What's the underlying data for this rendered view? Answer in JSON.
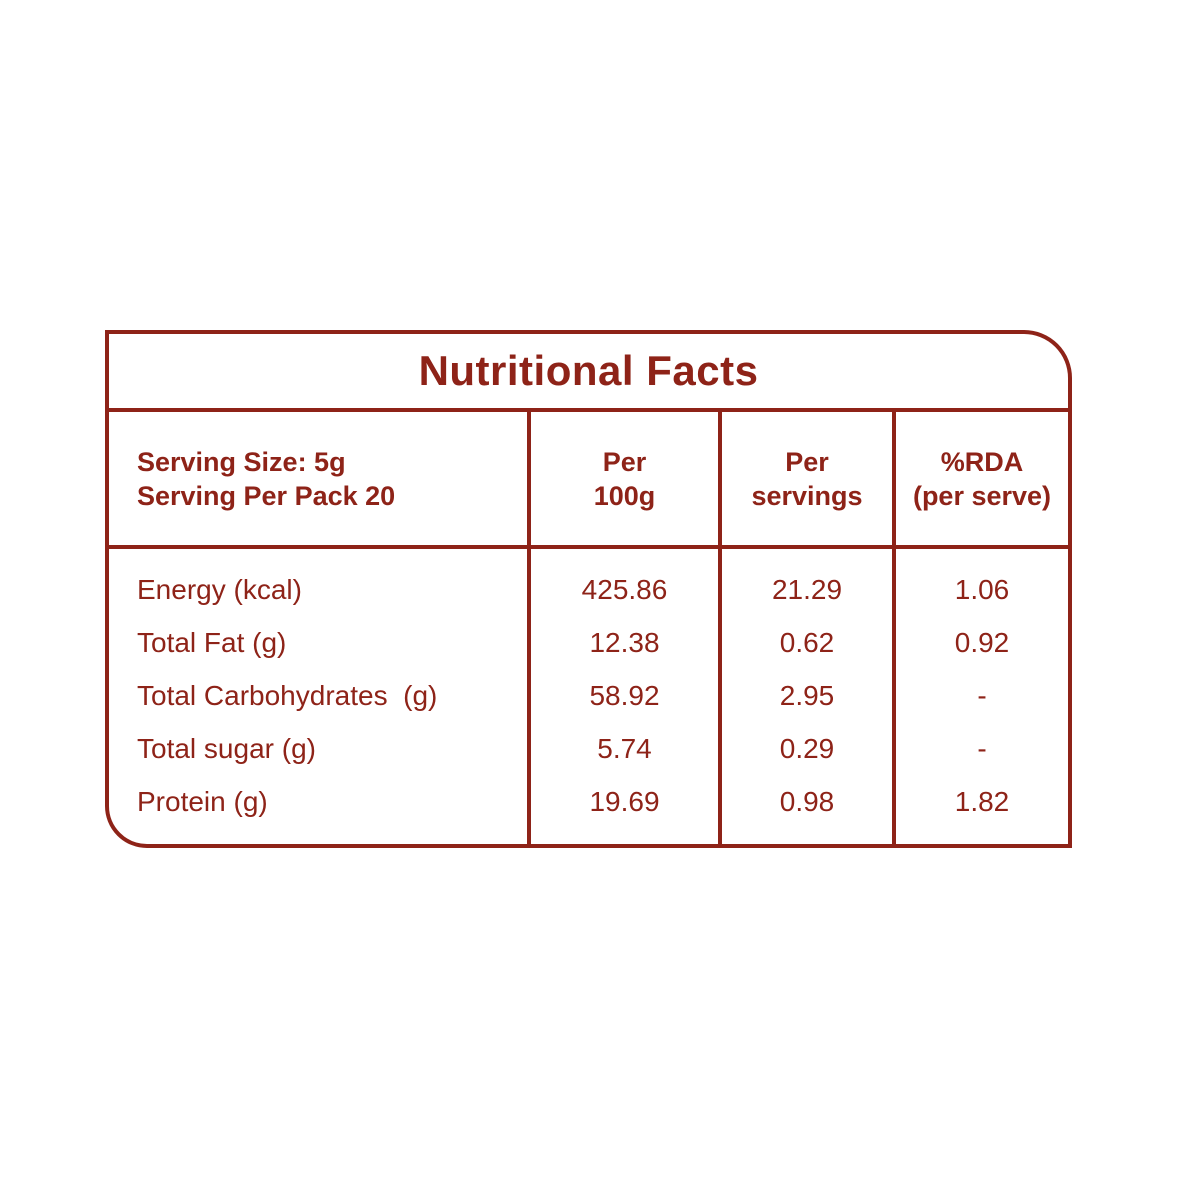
{
  "panel": {
    "title": "Nutritional Facts",
    "serving_info": {
      "line1": "Serving Size: 5g",
      "line2": "Serving Per Pack 20"
    },
    "column_headers": {
      "per_100g": {
        "line1": "Per",
        "line2": "100g"
      },
      "per_servings": {
        "line1": "Per",
        "line2": "servings"
      },
      "rda": {
        "line1": "%RDA",
        "line2": "(per serve)"
      }
    },
    "rows": [
      {
        "label": "Energy (kcal)",
        "per_100g": "425.86",
        "per_servings": "21.29",
        "rda": "1.06"
      },
      {
        "label": "Total Fat (g)",
        "per_100g": "12.38",
        "per_servings": "0.62",
        "rda": "0.92"
      },
      {
        "label": "Total Carbohydrates  (g)",
        "per_100g": "58.92",
        "per_servings": "2.95",
        "rda": "-"
      },
      {
        "label": "Total sugar (g)",
        "per_100g": "5.74",
        "per_servings": "0.29",
        "rda": "-"
      },
      {
        "label": "Protein (g)",
        "per_100g": "19.69",
        "per_servings": "0.98",
        "rda": "1.82"
      }
    ],
    "colors": {
      "accent": "#8e2318",
      "background": "#ffffff"
    }
  }
}
